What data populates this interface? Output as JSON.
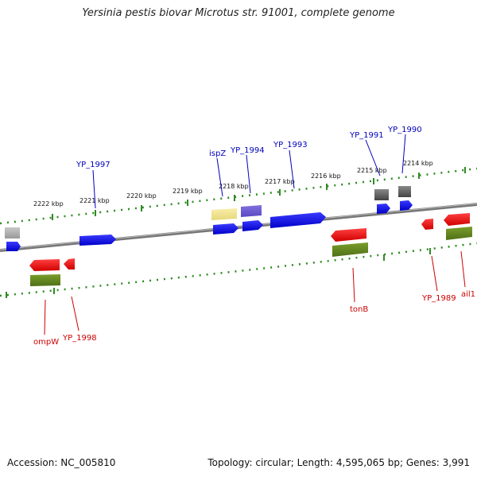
{
  "title": "Yersinia pestis biovar Microtus str. 91001, complete genome",
  "accession": "Accession: NC_005810",
  "summary": "Topology: circular; Length: 4,595,065 bp; Genes: 3,991",
  "colors": {
    "forward_gene": "#0000ee",
    "reverse_gene": "#ee0000",
    "forward_label": "#0000bb",
    "reverse_label": "#cc0000",
    "backbone": "#777777",
    "ruler": "#2e8b22",
    "cds_green": "#6b8e23",
    "pseudo_yellow": "#f0e68c",
    "purple_feature": "#7060d0",
    "grey_feature": "#666666"
  },
  "scale_labels": [
    "2222 kbp",
    "2221 kbp",
    "2220 kbp",
    "2219 kbp",
    "2218 kbp",
    "2217 kbp",
    "2216 kbp",
    "2215 kbp",
    "2214 kbp"
  ],
  "forward_gene_labels": [
    "YP_1997",
    "ispZ",
    "YP_1994",
    "YP_1993",
    "YP_1991",
    "YP_1990"
  ],
  "reverse_gene_labels": [
    "ompW",
    "YP_1998",
    "tonB",
    "YP_1989",
    "ail1"
  ]
}
